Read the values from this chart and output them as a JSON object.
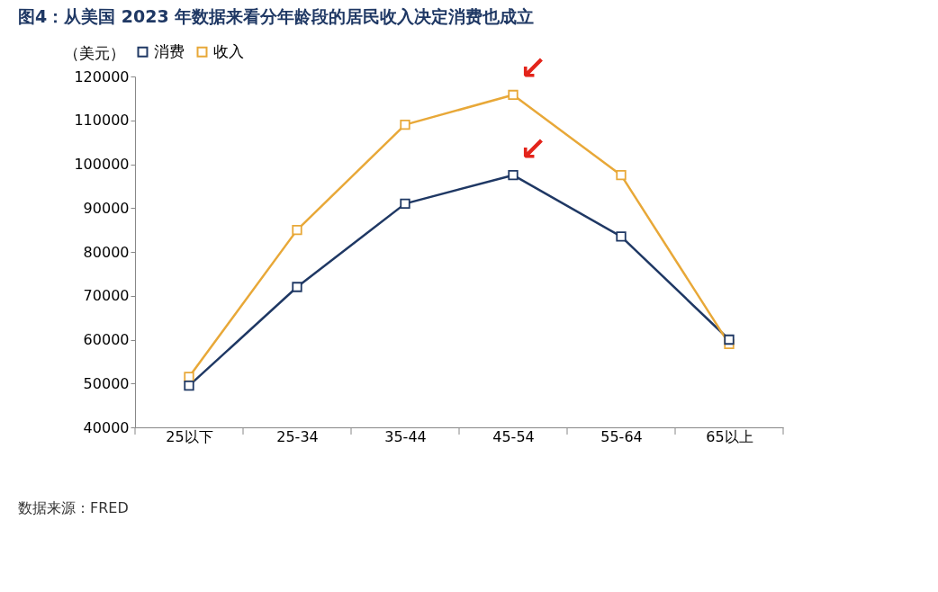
{
  "chart_data": {
    "type": "line",
    "title": "图4：从美国 2023 年数据来看分年龄段的居民收入决定消费也成立",
    "ylabel": "（美元）",
    "categories": [
      "25以下",
      "25-34",
      "35-44",
      "45-54",
      "55-64",
      "65以上"
    ],
    "series": [
      {
        "name": "消费",
        "color": "#1f3864",
        "values": [
          49500,
          72000,
          91000,
          97500,
          83500,
          60000
        ]
      },
      {
        "name": "收入",
        "color": "#e8a838",
        "values": [
          51500,
          85000,
          109000,
          115800,
          97500,
          59000
        ]
      }
    ],
    "ylim": [
      40000,
      120000
    ],
    "yticks": [
      40000,
      50000,
      60000,
      70000,
      80000,
      90000,
      100000,
      110000,
      120000
    ],
    "grid": false,
    "legend": "top",
    "marker": "square",
    "line_style": "solid",
    "annotations": [
      "数据来源：FRED",
      {
        "text": "↙",
        "x": "45-54",
        "y": 115800
      },
      {
        "text": "↙",
        "x": "45-54",
        "y": 97500
      }
    ]
  }
}
